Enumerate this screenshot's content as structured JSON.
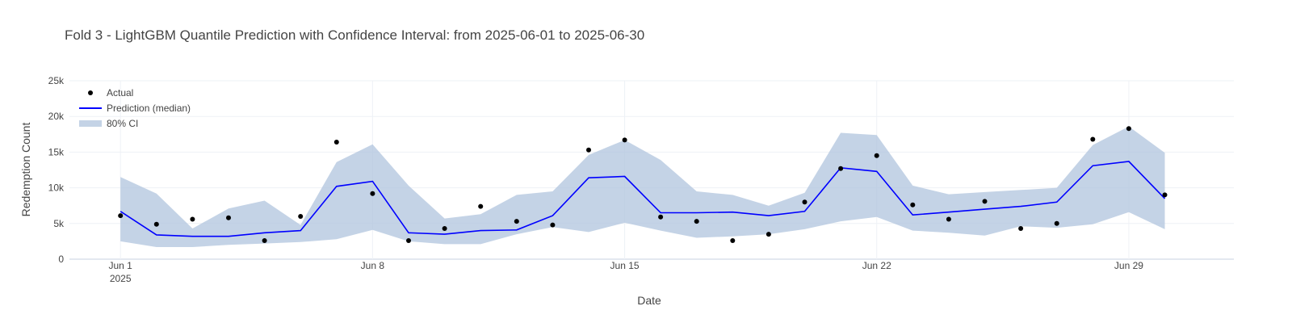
{
  "chart_data": {
    "type": "line",
    "title": "Fold 3 - LightGBM Quantile Prediction with Confidence Interval: from 2025-06-01 to 2025-06-30",
    "xlabel": "Date",
    "ylabel": "Redemption Count",
    "x_range": [
      "2025-05-30T14:00",
      "2025-07-01T22:00"
    ],
    "ylim": [
      0,
      25000
    ],
    "y_ticks": [
      0,
      5000,
      10000,
      15000,
      20000,
      25000
    ],
    "y_tick_labels": [
      "0",
      "5k",
      "10k",
      "15k",
      "20k",
      "25k"
    ],
    "x_ticks": [
      {
        "date": "2025-06-01",
        "label": "Jun 1",
        "sublabel": "2025"
      },
      {
        "date": "2025-06-08",
        "label": "Jun 8",
        "sublabel": ""
      },
      {
        "date": "2025-06-15",
        "label": "Jun 15",
        "sublabel": ""
      },
      {
        "date": "2025-06-22",
        "label": "Jun 22",
        "sublabel": ""
      },
      {
        "date": "2025-06-29",
        "label": "Jun 29",
        "sublabel": ""
      }
    ],
    "grid": true,
    "legend_position": "top-left",
    "x": [
      "2025-06-01",
      "2025-06-02",
      "2025-06-03",
      "2025-06-04",
      "2025-06-05",
      "2025-06-06",
      "2025-06-07",
      "2025-06-08",
      "2025-06-09",
      "2025-06-10",
      "2025-06-11",
      "2025-06-12",
      "2025-06-13",
      "2025-06-14",
      "2025-06-15",
      "2025-06-16",
      "2025-06-17",
      "2025-06-18",
      "2025-06-19",
      "2025-06-20",
      "2025-06-21",
      "2025-06-22",
      "2025-06-23",
      "2025-06-24",
      "2025-06-25",
      "2025-06-26",
      "2025-06-27",
      "2025-06-28",
      "2025-06-29",
      "2025-06-30"
    ],
    "series": [
      {
        "name": "Actual",
        "kind": "markers",
        "color": "#000000",
        "values": [
          6100,
          4900,
          5600,
          5800,
          2600,
          6000,
          16400,
          9200,
          2600,
          4300,
          7400,
          5300,
          4800,
          15300,
          16700,
          5900,
          5300,
          2600,
          3500,
          8000,
          12700,
          14500,
          7600,
          5600,
          8100,
          4300,
          5000,
          16800,
          18300,
          9000
        ]
      },
      {
        "name": "Prediction (median)",
        "kind": "line",
        "color": "#0000ff",
        "values": [
          6700,
          3400,
          3200,
          3200,
          3700,
          4000,
          10200,
          10900,
          3700,
          3500,
          4000,
          4100,
          6100,
          11400,
          11600,
          6500,
          6500,
          6600,
          6100,
          6700,
          12800,
          12300,
          6200,
          6600,
          7000,
          7400,
          8000,
          13100,
          13700,
          8500
        ]
      },
      {
        "name": "80% CI",
        "kind": "band",
        "color": "#b0c4de",
        "upper": [
          11500,
          9200,
          4300,
          7100,
          8200,
          4800,
          13600,
          16100,
          10300,
          5700,
          6300,
          9000,
          9500,
          14600,
          16700,
          13900,
          9500,
          9000,
          7500,
          9300,
          17700,
          17400,
          10300,
          9100,
          9400,
          9700,
          10000,
          16000,
          18600,
          14900
        ],
        "lower": [
          2500,
          1700,
          1700,
          2000,
          2200,
          2400,
          2800,
          4100,
          2500,
          2100,
          2100,
          3500,
          4500,
          3800,
          5100,
          4000,
          3000,
          3200,
          3500,
          4200,
          5300,
          5900,
          4000,
          3700,
          3300,
          4600,
          4400,
          4900,
          6600,
          4200
        ]
      }
    ]
  }
}
